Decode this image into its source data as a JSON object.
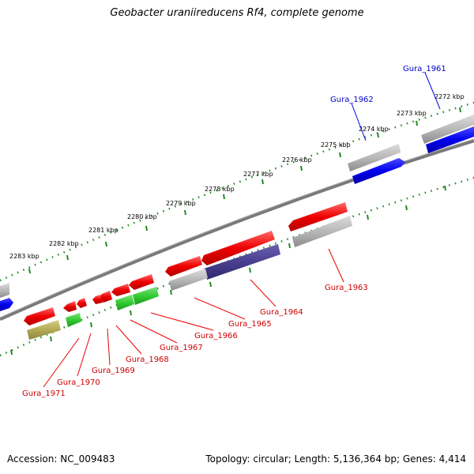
{
  "title": "Geobacter uraniireducens Rf4, complete genome",
  "footer": {
    "accession": "Accession: NC_009483",
    "summary": "Topology: circular; Length: 5,136,364 bp; Genes: 4,414"
  },
  "colors": {
    "backbone": "#7a7a7a",
    "tick_green": "#228b22",
    "forward_gene": "#0000ee",
    "reverse_gene": "#ee0000",
    "cds_grey": "#b0b0b0",
    "green_feature": "#33cc33",
    "olive_feature": "#b3aa55",
    "purple_feature": "#4b3f8f"
  },
  "ticks": [
    "2272 kbp",
    "2273 kbp",
    "2274 kbp",
    "2275 kbp",
    "2276 kbp",
    "2277 kbp",
    "2278 kbp",
    "2279 kbp",
    "2280 kbp",
    "2281 kbp",
    "2282 kbp",
    "2283 kbp"
  ],
  "genes_forward": [
    "Gura_1961",
    "Gura_1962"
  ],
  "genes_reverse": [
    "Gura_1963",
    "Gura_1964",
    "Gura_1965",
    "Gura_1966",
    "Gura_1967",
    "Gura_1968",
    "Gura_1969",
    "Gura_1970",
    "Gura_1971"
  ]
}
